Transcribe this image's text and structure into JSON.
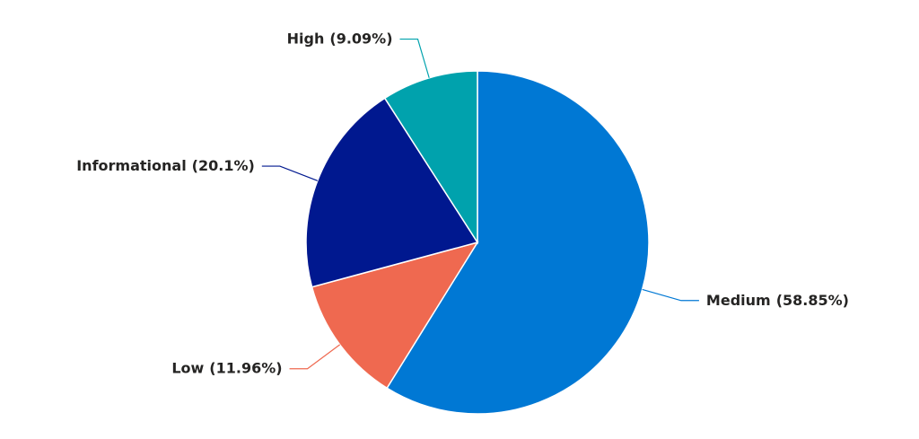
{
  "chart_data": {
    "type": "pie",
    "categories": [
      "Medium",
      "Low",
      "Informational",
      "High"
    ],
    "values": [
      58.85,
      11.96,
      20.1,
      9.09
    ],
    "value_labels": [
      "(58.85%)",
      "(11.96%)",
      "(20.1%)",
      "(9.09%)"
    ],
    "colors": [
      "#0078d4",
      "#ef6950",
      "#00188f",
      "#00a2ad"
    ]
  }
}
